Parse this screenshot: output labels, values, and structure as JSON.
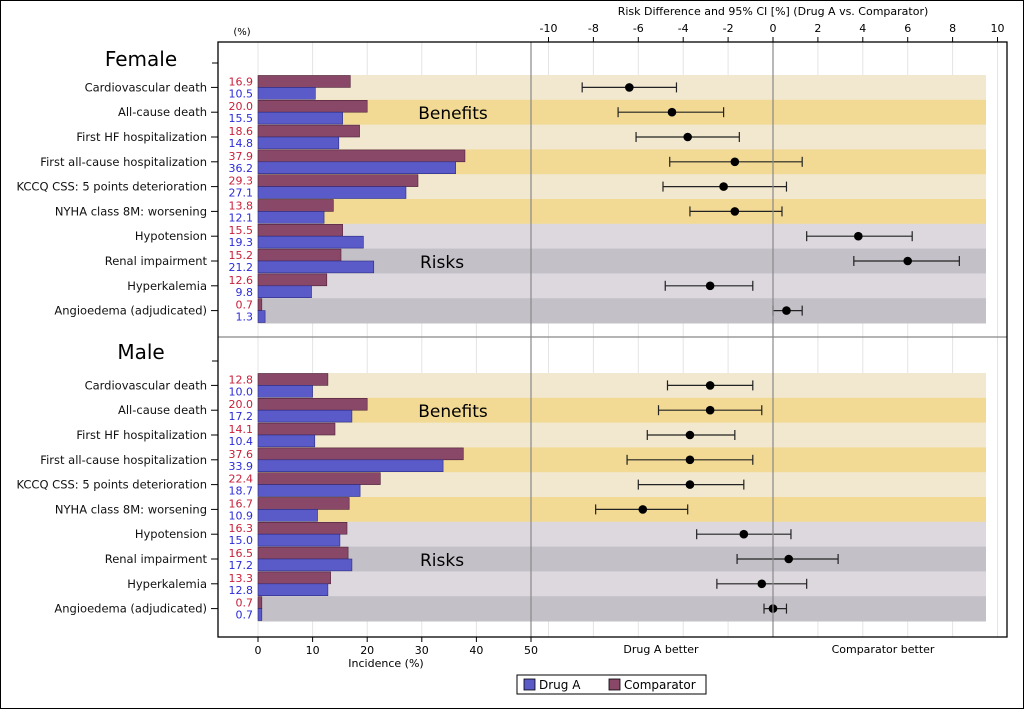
{
  "chart_data": {
    "type": "bar",
    "rd_axis_title": "Risk Difference and 95% CI [%] (Drug A vs. Comparator)",
    "rd_ticks": [
      -10,
      -8,
      -6,
      -4,
      -2,
      0,
      2,
      4,
      6,
      8,
      10
    ],
    "rd_range": [
      -10,
      10
    ],
    "incidence_unit_label": "(%)",
    "incidence_xlabel": "Incidence (%)",
    "incidence_ticks": [
      0,
      10,
      20,
      30,
      40,
      50
    ],
    "incidence_range": [
      0,
      50
    ],
    "favor_left": "Drug A better",
    "favor_right": "Comparator better",
    "grid": true,
    "legend": {
      "position": "bottom",
      "items": [
        {
          "name": "Drug A",
          "color": "#5a5ac8"
        },
        {
          "name": "Comparator",
          "color": "#8a4868"
        }
      ]
    },
    "colors": {
      "drug_a": "#5a5ac8",
      "comparator": "#8a4868",
      "drug_a_label": "#2b2bd9",
      "comparator_label": "#c8203a",
      "benefit_light": "#f1e8cf",
      "benefit_dark": "#f2da94",
      "risk_light": "#dcd8de",
      "risk_dark": "#c4c0c7"
    },
    "group_labels": {
      "benefits": "Benefits",
      "risks": "Risks"
    },
    "panels": [
      {
        "name": "Female",
        "rows": [
          {
            "label": "Cardiovascular death",
            "group": "benefits",
            "comparator": 16.9,
            "drug_a": 10.5,
            "rd": -6.4,
            "ci": [
              -8.5,
              -4.3
            ]
          },
          {
            "label": "All-cause death",
            "group": "benefits",
            "comparator": 20.0,
            "drug_a": 15.5,
            "rd": -4.5,
            "ci": [
              -6.9,
              -2.2
            ]
          },
          {
            "label": "First HF hospitalization",
            "group": "benefits",
            "comparator": 18.6,
            "drug_a": 14.8,
            "rd": -3.8,
            "ci": [
              -6.1,
              -1.5
            ]
          },
          {
            "label": "First all-cause hospitalization",
            "group": "benefits",
            "comparator": 37.9,
            "drug_a": 36.2,
            "rd": -1.7,
            "ci": [
              -4.6,
              1.3
            ]
          },
          {
            "label": "KCCQ CSS: 5 points deterioration",
            "group": "benefits",
            "comparator": 29.3,
            "drug_a": 27.1,
            "rd": -2.2,
            "ci": [
              -4.9,
              0.6
            ]
          },
          {
            "label": "NYHA class 8M: worsening",
            "group": "benefits",
            "comparator": 13.8,
            "drug_a": 12.1,
            "rd": -1.7,
            "ci": [
              -3.7,
              0.4
            ]
          },
          {
            "label": "Hypotension",
            "group": "risks",
            "comparator": 15.5,
            "drug_a": 19.3,
            "rd": 3.8,
            "ci": [
              1.5,
              6.2
            ]
          },
          {
            "label": "Renal impairment",
            "group": "risks",
            "comparator": 15.2,
            "drug_a": 21.2,
            "rd": 6.0,
            "ci": [
              3.6,
              8.3
            ]
          },
          {
            "label": "Hyperkalemia",
            "group": "risks",
            "comparator": 12.6,
            "drug_a": 9.8,
            "rd": -2.8,
            "ci": [
              -4.8,
              -0.9
            ]
          },
          {
            "label": "Angioedema (adjudicated)",
            "group": "risks",
            "comparator": 0.7,
            "drug_a": 1.3,
            "rd": 0.6,
            "ci": [
              0.0,
              1.3
            ]
          }
        ]
      },
      {
        "name": "Male",
        "rows": [
          {
            "label": "Cardiovascular death",
            "group": "benefits",
            "comparator": 12.8,
            "drug_a": 10.0,
            "rd": -2.8,
            "ci": [
              -4.7,
              -0.9
            ]
          },
          {
            "label": "All-cause death",
            "group": "benefits",
            "comparator": 20.0,
            "drug_a": 17.2,
            "rd": -2.8,
            "ci": [
              -5.1,
              -0.5
            ]
          },
          {
            "label": "First HF hospitalization",
            "group": "benefits",
            "comparator": 14.1,
            "drug_a": 10.4,
            "rd": -3.7,
            "ci": [
              -5.6,
              -1.7
            ]
          },
          {
            "label": "First all-cause hospitalization",
            "group": "benefits",
            "comparator": 37.6,
            "drug_a": 33.9,
            "rd": -3.7,
            "ci": [
              -6.5,
              -0.9
            ]
          },
          {
            "label": "KCCQ CSS: 5 points deterioration",
            "group": "benefits",
            "comparator": 22.4,
            "drug_a": 18.7,
            "rd": -3.7,
            "ci": [
              -6.0,
              -1.3
            ]
          },
          {
            "label": "NYHA class 8M: worsening",
            "group": "benefits",
            "comparator": 16.7,
            "drug_a": 10.9,
            "rd": -5.8,
            "ci": [
              -7.9,
              -3.8
            ]
          },
          {
            "label": "Hypotension",
            "group": "risks",
            "comparator": 16.3,
            "drug_a": 15.0,
            "rd": -1.3,
            "ci": [
              -3.4,
              0.8
            ]
          },
          {
            "label": "Renal impairment",
            "group": "risks",
            "comparator": 16.5,
            "drug_a": 17.2,
            "rd": 0.7,
            "ci": [
              -1.6,
              2.9
            ]
          },
          {
            "label": "Hyperkalemia",
            "group": "risks",
            "comparator": 13.3,
            "drug_a": 12.8,
            "rd": -0.5,
            "ci": [
              -2.5,
              1.5
            ]
          },
          {
            "label": "Angioedema (adjudicated)",
            "group": "risks",
            "comparator": 0.7,
            "drug_a": 0.7,
            "rd": 0.0,
            "ci": [
              -0.4,
              0.6
            ]
          }
        ]
      }
    ]
  }
}
